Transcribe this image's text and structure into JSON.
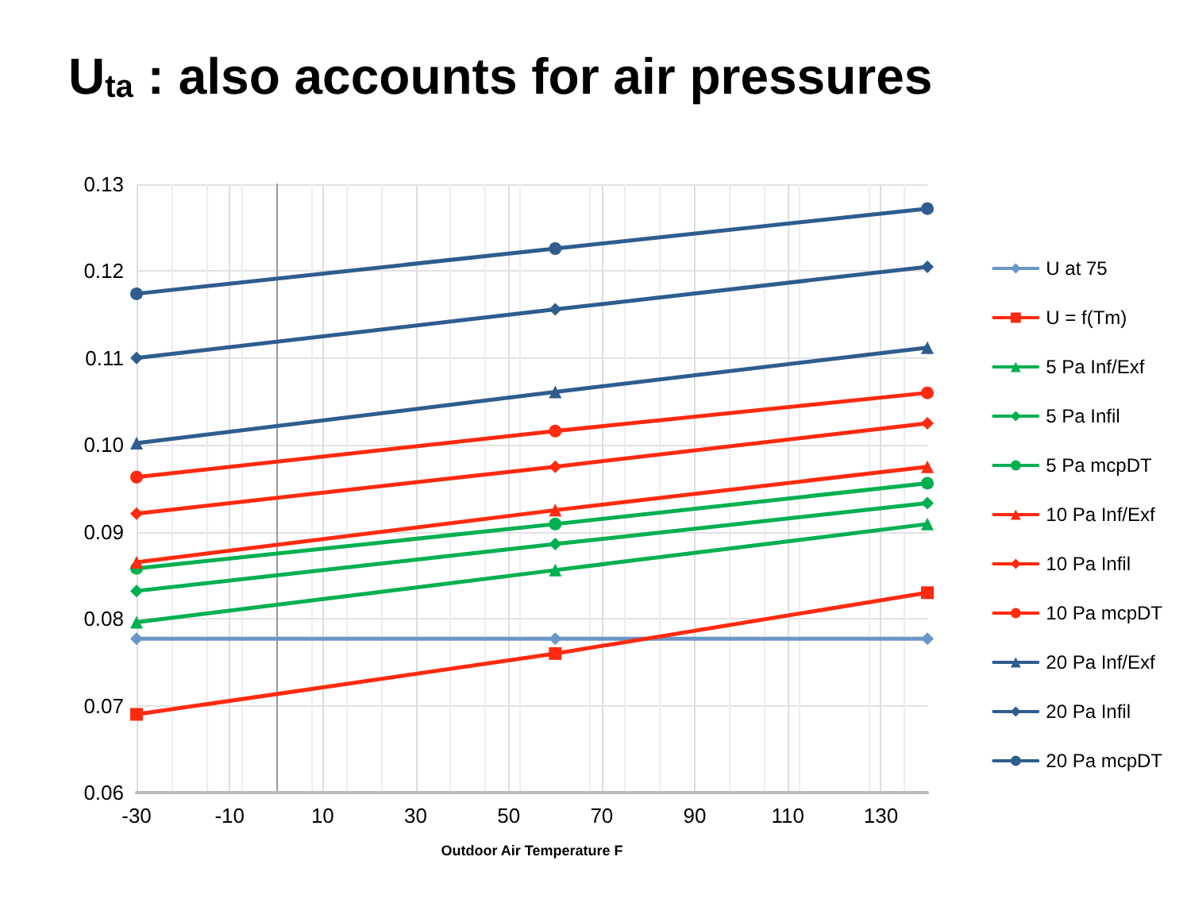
{
  "chart_data": {
    "type": "line",
    "title": "U$_{ta}$ : also accounts for air pressures",
    "xlabel": "Outdoor Air Temperature F",
    "x": [
      -30,
      60,
      140
    ],
    "xlim": [
      -30,
      140
    ],
    "xticks": [
      -30,
      -10,
      10,
      30,
      50,
      70,
      90,
      110,
      130
    ],
    "ylim": [
      0.06,
      0.13
    ],
    "yticks": [
      0.06,
      0.07,
      0.08,
      0.09,
      {
        "value": 0.1,
        "label": "0.10"
      },
      0.11,
      0.12,
      0.13
    ],
    "grid": true,
    "legend": "right",
    "line_style": "solid",
    "series": [
      {
        "name": "U at 75",
        "color": "#6a96c8",
        "marker": "diamond",
        "values": [
          0.0777,
          0.0777,
          0.0777
        ]
      },
      {
        "name": "U = f(Tm)",
        "color": "#ff2a0f",
        "marker": "square",
        "values": [
          0.069,
          0.076,
          0.083
        ]
      },
      {
        "name": "5 Pa Inf/Exf",
        "color": "#00b050",
        "marker": "triangle",
        "values": [
          0.0796,
          0.0856,
          0.0909
        ]
      },
      {
        "name": "5 Pa Infil",
        "color": "#00b050",
        "marker": "diamond",
        "values": [
          0.0832,
          0.0886,
          0.0933
        ]
      },
      {
        "name": "5 Pa mcpDT",
        "color": "#00b050",
        "marker": "circle",
        "values": [
          0.0858,
          0.0909,
          0.0956
        ]
      },
      {
        "name": "10 Pa Inf/Exf",
        "color": "#ff2a0f",
        "marker": "triangle",
        "values": [
          0.0865,
          0.0925,
          0.0975
        ]
      },
      {
        "name": "10 Pa Infil",
        "color": "#ff2a0f",
        "marker": "diamond",
        "values": [
          0.0921,
          0.0975,
          0.1025
        ]
      },
      {
        "name": "10 Pa mcpDT",
        "color": "#ff2a0f",
        "marker": "circle",
        "values": [
          0.0963,
          0.1016,
          0.106
        ]
      },
      {
        "name": "20 Pa Inf/Exf",
        "color": "#2e5d8e",
        "marker": "triangle",
        "values": [
          0.1002,
          0.1061,
          0.1112
        ]
      },
      {
        "name": "20 Pa Infil",
        "color": "#2e5d8e",
        "marker": "diamond",
        "values": [
          0.11,
          0.1156,
          0.1205
        ]
      },
      {
        "name": "20 Pa mcpDT",
        "color": "#2e5d8e",
        "marker": "circle",
        "values": [
          0.1174,
          0.1226,
          0.1272
        ]
      }
    ]
  }
}
